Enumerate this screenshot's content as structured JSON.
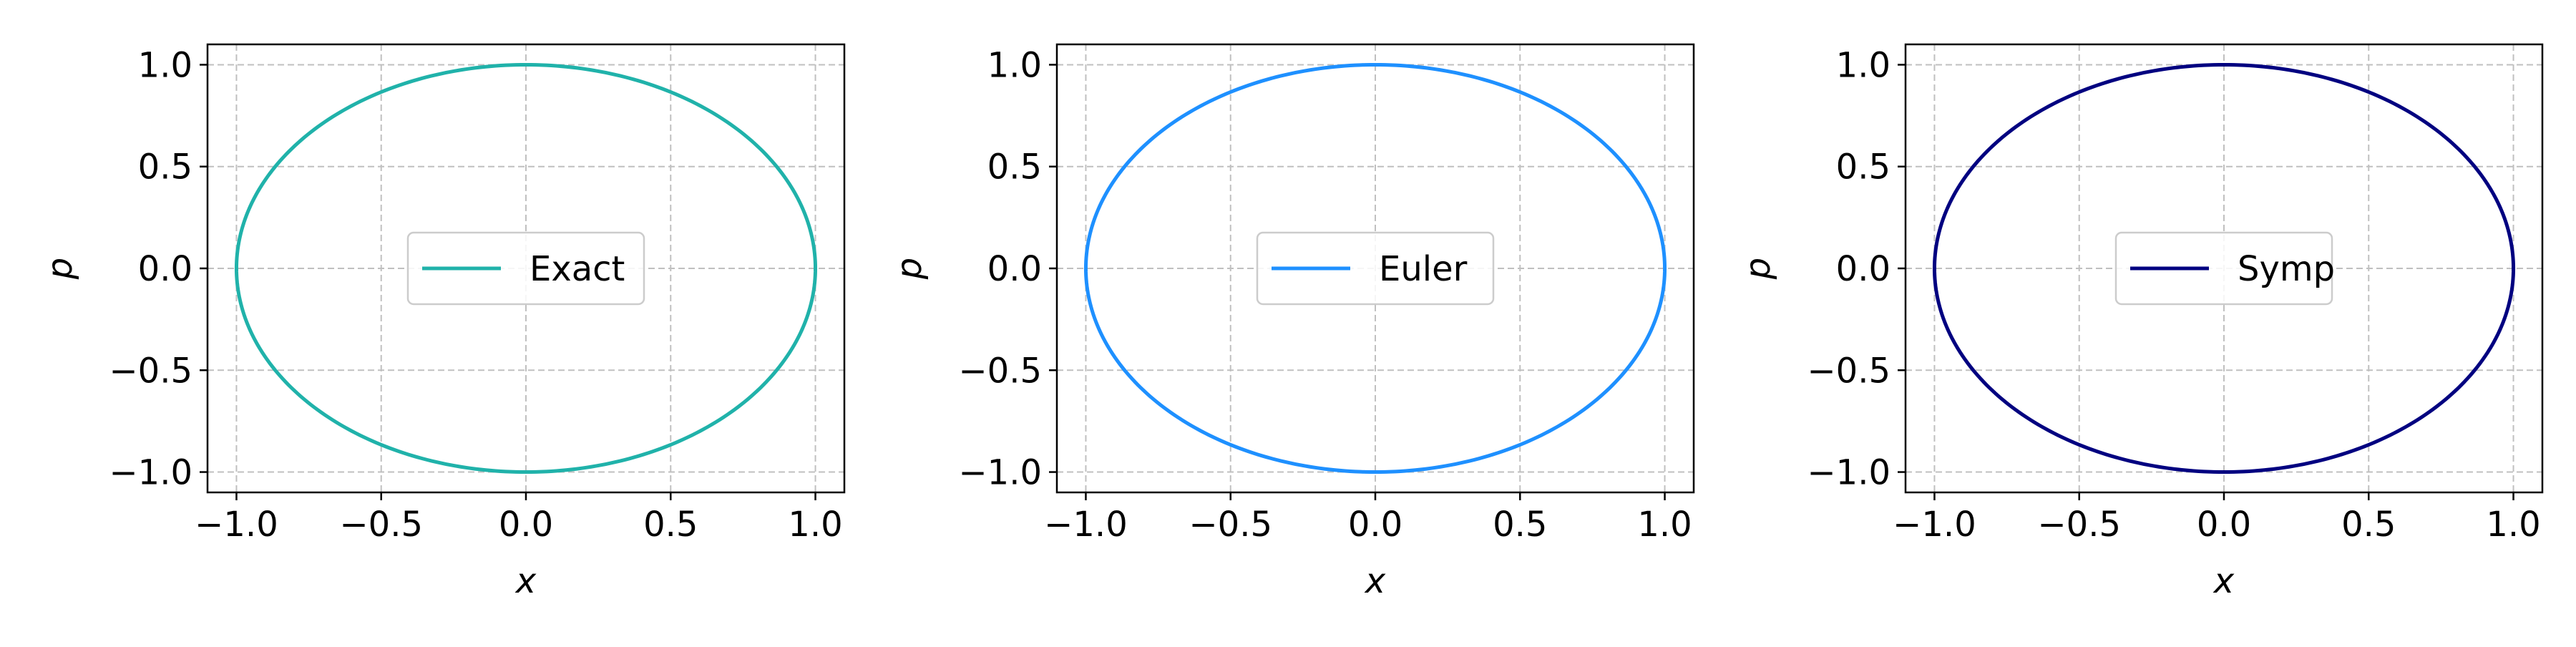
{
  "chart_data": [
    {
      "type": "line",
      "title": "",
      "xlabel": "x",
      "ylabel": "p",
      "xlim": [
        -1.1,
        1.1
      ],
      "ylim": [
        -1.1,
        1.1
      ],
      "xticks": [
        -1.0,
        -0.5,
        0.0,
        0.5,
        1.0
      ],
      "yticks": [
        -1.0,
        -0.5,
        0.0,
        0.5,
        1.0
      ],
      "xtick_labels": [
        "−1.0",
        "−0.5",
        "0.0",
        "0.5",
        "1.0"
      ],
      "ytick_labels": [
        "−1.0",
        "−0.5",
        "0.0",
        "0.5",
        "1.0"
      ],
      "grid": true,
      "legend_position": "center",
      "series": [
        {
          "name": "Exact",
          "color": "#20b2aa",
          "curve": "unit circle",
          "x": [
            1.0,
            0.9511,
            0.809,
            0.5878,
            0.309,
            0.0,
            -0.309,
            -0.5878,
            -0.809,
            -0.9511,
            -1.0,
            -0.9511,
            -0.809,
            -0.5878,
            -0.309,
            0.0,
            0.309,
            0.5878,
            0.809,
            0.9511,
            1.0
          ],
          "y": [
            0.0,
            0.309,
            0.5878,
            0.809,
            0.9511,
            1.0,
            0.9511,
            0.809,
            0.5878,
            0.309,
            0.0,
            -0.309,
            -0.5878,
            -0.809,
            -0.9511,
            -1.0,
            -0.9511,
            -0.809,
            -0.5878,
            -0.309,
            0.0
          ]
        }
      ]
    },
    {
      "type": "line",
      "title": "",
      "xlabel": "x",
      "ylabel": "p",
      "xlim": [
        -1.1,
        1.1
      ],
      "ylim": [
        -1.1,
        1.1
      ],
      "xticks": [
        -1.0,
        -0.5,
        0.0,
        0.5,
        1.0
      ],
      "yticks": [
        -1.0,
        -0.5,
        0.0,
        0.5,
        1.0
      ],
      "xtick_labels": [
        "−1.0",
        "−0.5",
        "0.0",
        "0.5",
        "1.0"
      ],
      "ytick_labels": [
        "−1.0",
        "−0.5",
        "0.0",
        "0.5",
        "1.0"
      ],
      "grid": true,
      "legend_position": "center",
      "series": [
        {
          "name": "Euler",
          "color": "#1e90ff",
          "curve": "unit circle",
          "x": [
            1.0,
            0.9511,
            0.809,
            0.5878,
            0.309,
            0.0,
            -0.309,
            -0.5878,
            -0.809,
            -0.9511,
            -1.0,
            -0.9511,
            -0.809,
            -0.5878,
            -0.309,
            0.0,
            0.309,
            0.5878,
            0.809,
            0.9511,
            1.0
          ],
          "y": [
            0.0,
            0.309,
            0.5878,
            0.809,
            0.9511,
            1.0,
            0.9511,
            0.809,
            0.5878,
            0.309,
            0.0,
            -0.309,
            -0.5878,
            -0.809,
            -0.9511,
            -1.0,
            -0.9511,
            -0.809,
            -0.5878,
            -0.309,
            0.0
          ]
        }
      ]
    },
    {
      "type": "line",
      "title": "",
      "xlabel": "x",
      "ylabel": "p",
      "xlim": [
        -1.1,
        1.1
      ],
      "ylim": [
        -1.1,
        1.1
      ],
      "xticks": [
        -1.0,
        -0.5,
        0.0,
        0.5,
        1.0
      ],
      "yticks": [
        -1.0,
        -0.5,
        0.0,
        0.5,
        1.0
      ],
      "xtick_labels": [
        "−1.0",
        "−0.5",
        "0.0",
        "0.5",
        "1.0"
      ],
      "ytick_labels": [
        "−1.0",
        "−0.5",
        "0.0",
        "0.5",
        "1.0"
      ],
      "grid": true,
      "legend_position": "center",
      "series": [
        {
          "name": "Symp",
          "color": "#000080",
          "curve": "unit circle",
          "x": [
            1.0,
            0.9511,
            0.809,
            0.5878,
            0.309,
            0.0,
            -0.309,
            -0.5878,
            -0.809,
            -0.9511,
            -1.0,
            -0.9511,
            -0.809,
            -0.5878,
            -0.309,
            0.0,
            0.309,
            0.5878,
            0.809,
            0.9511,
            1.0
          ],
          "y": [
            0.0,
            0.309,
            0.5878,
            0.809,
            0.9511,
            1.0,
            0.9511,
            0.809,
            0.5878,
            0.309,
            0.0,
            -0.309,
            -0.5878,
            -0.809,
            -0.9511,
            -1.0,
            -0.9511,
            -0.809,
            -0.5878,
            -0.309,
            0.0
          ]
        }
      ]
    }
  ]
}
